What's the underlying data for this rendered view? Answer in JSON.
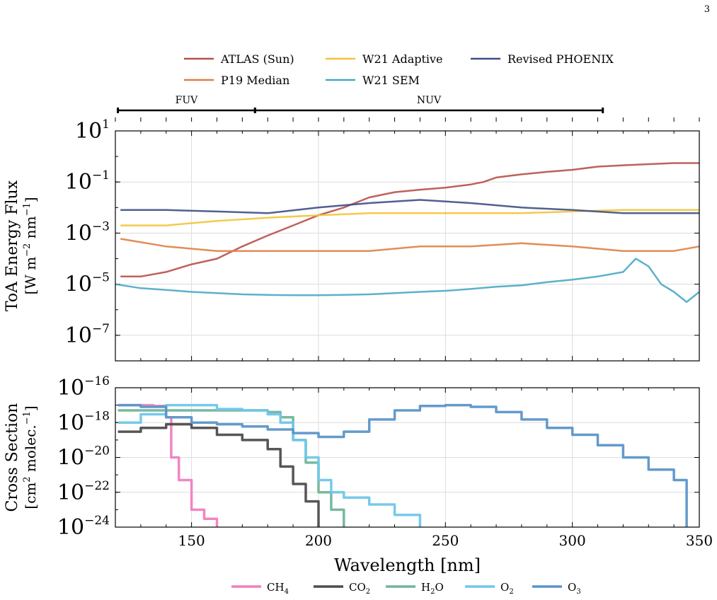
{
  "page_number": "3",
  "top_legend": [
    {
      "label": "ATLAS (Sun)",
      "color": "#b8504a"
    },
    {
      "label": "W21 Adaptive",
      "color": "#f2c43a"
    },
    {
      "label": "Revised PHOENIX",
      "color": "#3e4f86"
    },
    {
      "label": "P19 Median",
      "color": "#e07f46"
    },
    {
      "label": "W21 SEM",
      "color": "#4aa8c4"
    }
  ],
  "bottom_legend": [
    {
      "label": "CH",
      "sub": "4",
      "color": "#f07fbf"
    },
    {
      "label": "CO",
      "sub": "2",
      "color": "#4d4d4d"
    },
    {
      "label": "H",
      "sub": "2",
      "tail": "O",
      "color": "#70b59a"
    },
    {
      "label": "O",
      "sub": "2",
      "color": "#6fc7ea"
    },
    {
      "label": "O",
      "sub": "3",
      "color": "#5b95c9"
    }
  ],
  "bands": [
    {
      "label": "FUV",
      "start": 121,
      "end": 175
    },
    {
      "label": "NUV",
      "start": 175,
      "end": 312
    }
  ],
  "chart_data": [
    {
      "type": "line",
      "ylabel_line1": "ToA Energy Flux",
      "ylabel_line2_parts": [
        "[W m",
        "−2",
        " nm",
        "−1",
        "]"
      ],
      "yscale": "log",
      "xlim": [
        120,
        350
      ],
      "ylim_exp": [
        -8,
        1
      ],
      "ytick_exps": [
        1,
        -1,
        -3,
        -5,
        -7
      ],
      "series": [
        {
          "name": "ATLAS (Sun)",
          "color": "#b8504a",
          "x": [
            122,
            130,
            140,
            150,
            160,
            170,
            180,
            190,
            200,
            210,
            220,
            230,
            240,
            250,
            260,
            265,
            270,
            280,
            290,
            300,
            310,
            320,
            330,
            340,
            350
          ],
          "y": [
            2e-05,
            2e-05,
            3e-05,
            6e-05,
            0.0001,
            0.0003,
            0.0008,
            0.002,
            0.005,
            0.01,
            0.025,
            0.04,
            0.05,
            0.06,
            0.08,
            0.1,
            0.15,
            0.2,
            0.25,
            0.3,
            0.4,
            0.45,
            0.5,
            0.55,
            0.55
          ]
        },
        {
          "name": "W21 Adaptive",
          "color": "#f2c43a",
          "x": [
            122,
            140,
            160,
            180,
            200,
            220,
            240,
            260,
            280,
            300,
            320,
            340,
            350
          ],
          "y": [
            0.002,
            0.002,
            0.003,
            0.004,
            0.005,
            0.006,
            0.006,
            0.006,
            0.006,
            0.007,
            0.008,
            0.008,
            0.008
          ]
        },
        {
          "name": "Revised PHOENIX",
          "color": "#3e4f86",
          "x": [
            122,
            140,
            160,
            180,
            200,
            220,
            240,
            260,
            280,
            300,
            320,
            340,
            350
          ],
          "y": [
            0.008,
            0.008,
            0.007,
            0.006,
            0.01,
            0.015,
            0.02,
            0.015,
            0.01,
            0.008,
            0.006,
            0.006,
            0.006
          ]
        },
        {
          "name": "P19 Median",
          "color": "#e07f46",
          "x": [
            122,
            140,
            160,
            180,
            200,
            220,
            240,
            260,
            280,
            300,
            320,
            340,
            350
          ],
          "y": [
            0.0006,
            0.0003,
            0.0002,
            0.0002,
            0.0002,
            0.0002,
            0.0003,
            0.0003,
            0.0004,
            0.0003,
            0.0002,
            0.0002,
            0.0003
          ]
        },
        {
          "name": "W21 SEM",
          "color": "#4aa8c4",
          "x": [
            120,
            130,
            140,
            150,
            160,
            170,
            180,
            190,
            200,
            210,
            220,
            230,
            240,
            250,
            260,
            270,
            280,
            290,
            300,
            310,
            320,
            325,
            330,
            335,
            340,
            345,
            350
          ],
          "y": [
            1e-05,
            7e-06,
            6e-06,
            5e-06,
            4.5e-06,
            4e-06,
            3.8e-06,
            3.7e-06,
            3.7e-06,
            3.8e-06,
            4e-06,
            4.5e-06,
            5e-06,
            5.5e-06,
            6.5e-06,
            8e-06,
            9e-06,
            1.2e-05,
            1.5e-05,
            2e-05,
            3e-05,
            0.0001,
            5e-05,
            1e-05,
            5e-06,
            2e-06,
            5e-06
          ]
        }
      ]
    },
    {
      "type": "line",
      "xlabel": "Wavelength [nm]",
      "ylabel_line1": "Cross Section",
      "ylabel_line2_parts": [
        "[cm",
        "2",
        " molec.",
        "−1",
        "]"
      ],
      "yscale": "log",
      "xlim": [
        120,
        350
      ],
      "ylim_exp": [
        -24,
        -16
      ],
      "ytick_exps": [
        -16,
        -18,
        -20,
        -22,
        -24
      ],
      "xticks": [
        150,
        200,
        250,
        300,
        350
      ],
      "series": [
        {
          "name": "CH4",
          "color": "#f07fbf",
          "x": [
            121,
            125,
            130,
            135,
            140,
            142,
            145,
            150,
            155,
            160
          ],
          "y": [
            1e-17,
            1e-17,
            1e-17,
            9e-18,
            2e-18,
            1e-20,
            5e-22,
            1e-23,
            3e-24,
            1e-24
          ]
        },
        {
          "name": "CO2",
          "color": "#4d4d4d",
          "x": [
            121,
            130,
            140,
            150,
            160,
            170,
            180,
            185,
            190,
            195,
            200
          ],
          "y": [
            3e-19,
            5e-19,
            8e-19,
            5e-19,
            2e-19,
            1e-19,
            3e-20,
            3e-21,
            3e-22,
            3e-23,
            1e-24
          ]
        },
        {
          "name": "H2O",
          "color": "#70b59a",
          "x": [
            121,
            130,
            140,
            150,
            160,
            170,
            180,
            185,
            190,
            195,
            200,
            205,
            210
          ],
          "y": [
            5e-18,
            5e-18,
            5e-18,
            5e-18,
            5e-18,
            5e-18,
            4e-18,
            2e-18,
            1e-19,
            5e-21,
            1e-22,
            1e-23,
            1e-24
          ]
        },
        {
          "name": "O2",
          "color": "#6fc7ea",
          "x": [
            121,
            130,
            140,
            150,
            160,
            170,
            180,
            185,
            190,
            195,
            200,
            205,
            210,
            220,
            230,
            240
          ],
          "y": [
            1e-18,
            3e-18,
            1e-17,
            1e-17,
            6e-18,
            5e-18,
            3e-18,
            1e-18,
            1e-19,
            1e-20,
            5e-22,
            1e-22,
            5e-23,
            2e-23,
            5e-24,
            1e-24
          ]
        },
        {
          "name": "O3",
          "color": "#5b95c9",
          "x": [
            121,
            130,
            140,
            150,
            160,
            170,
            180,
            190,
            200,
            210,
            220,
            230,
            240,
            250,
            260,
            270,
            280,
            290,
            300,
            310,
            320,
            330,
            340,
            345
          ],
          "y": [
            1e-17,
            8e-18,
            2e-18,
            1e-18,
            8e-19,
            6e-19,
            4e-19,
            2.5e-19,
            1.5e-19,
            3e-19,
            1.5e-18,
            5e-18,
            9e-18,
            1e-17,
            8e-18,
            4e-18,
            1.5e-18,
            5e-19,
            2e-19,
            5e-20,
            1e-20,
            2e-21,
            5e-22,
            1e-24
          ]
        }
      ]
    }
  ]
}
